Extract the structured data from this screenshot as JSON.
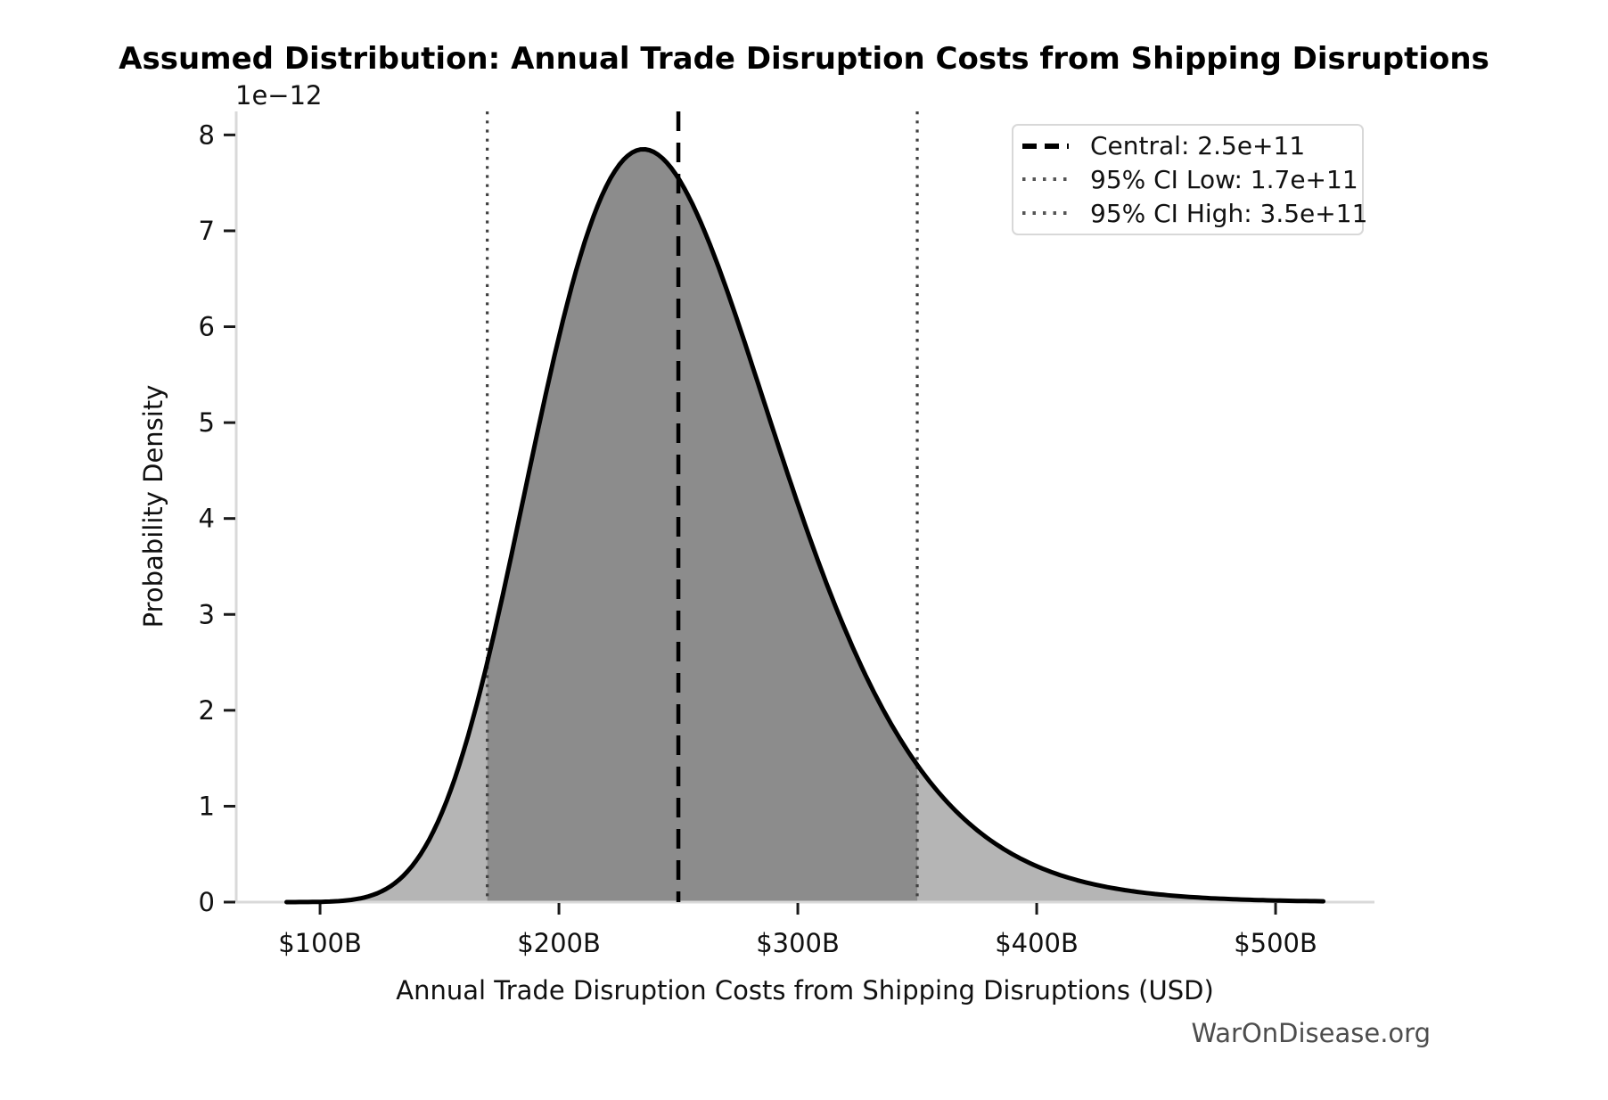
{
  "title": "Assumed Distribution: Annual Trade Disruption Costs from Shipping Disruptions",
  "watermark": "WarOnDisease.org",
  "chart_data": {
    "type": "area",
    "subtype": "probability-density-curve",
    "title": "Assumed Distribution: Annual Trade Disruption Costs from Shipping Disruptions",
    "xlabel": "Annual Trade Disruption Costs from Shipping Disruptions (USD)",
    "ylabel": "Probability Density",
    "y_scale_offset_label": "1e−12",
    "xlim": [
      64900000000.0,
      541400000000.0
    ],
    "ylim": [
      0,
      8.245e-12
    ],
    "grid": false,
    "x_ticks": [
      {
        "value": 100000000000.0,
        "label": "$100B"
      },
      {
        "value": 200000000000.0,
        "label": "$200B"
      },
      {
        "value": 300000000000.0,
        "label": "$300B"
      },
      {
        "value": 400000000000.0,
        "label": "$400B"
      },
      {
        "value": 500000000000.0,
        "label": "$500B"
      }
    ],
    "y_ticks": [
      {
        "value": 0,
        "label": "0"
      },
      {
        "value": 1e-12,
        "label": "1"
      },
      {
        "value": 2e-12,
        "label": "2"
      },
      {
        "value": 3e-12,
        "label": "3"
      },
      {
        "value": 4e-12,
        "label": "4"
      },
      {
        "value": 5e-12,
        "label": "5"
      },
      {
        "value": 6e-12,
        "label": "6"
      },
      {
        "value": 7e-12,
        "label": "7"
      },
      {
        "value": 8e-12,
        "label": "8"
      }
    ],
    "curve": {
      "distribution": "lognormal",
      "median": 246500000000.0,
      "sigma": 0.215,
      "x_start": 86000000000.0,
      "x_end": 520000000000.0,
      "peak_density": 7.85e-12,
      "peak_x": 235000000000.0,
      "n_points": 240
    },
    "markers": {
      "central": {
        "value": 250000000000.0,
        "style": "dashed",
        "color": "#000000"
      },
      "ci_low": {
        "value": 170000000000.0,
        "style": "dotted",
        "color": "#404040"
      },
      "ci_high": {
        "value": 350000000000.0,
        "style": "dotted",
        "color": "#404040"
      }
    },
    "shaded_ci_region": {
      "from": 170000000000.0,
      "to": 350000000000.0
    },
    "legend": [
      {
        "label": "Central: 2.5e+11",
        "style": "dashed",
        "color": "#000000"
      },
      {
        "label": "95% CI Low: 1.7e+11",
        "style": "dotted",
        "color": "#555555"
      },
      {
        "label": "95% CI High: 3.5e+11",
        "style": "dotted",
        "color": "#555555"
      }
    ],
    "legend_position": "upper right",
    "colors": {
      "curve": "#000000",
      "fill": "#b5b5b5",
      "fill_ci": "#8c8c8c",
      "spine": "#d9d9d9",
      "tick": "#1a1a1a",
      "tick_label": "#111111",
      "watermark": "#4d4d4d"
    }
  }
}
